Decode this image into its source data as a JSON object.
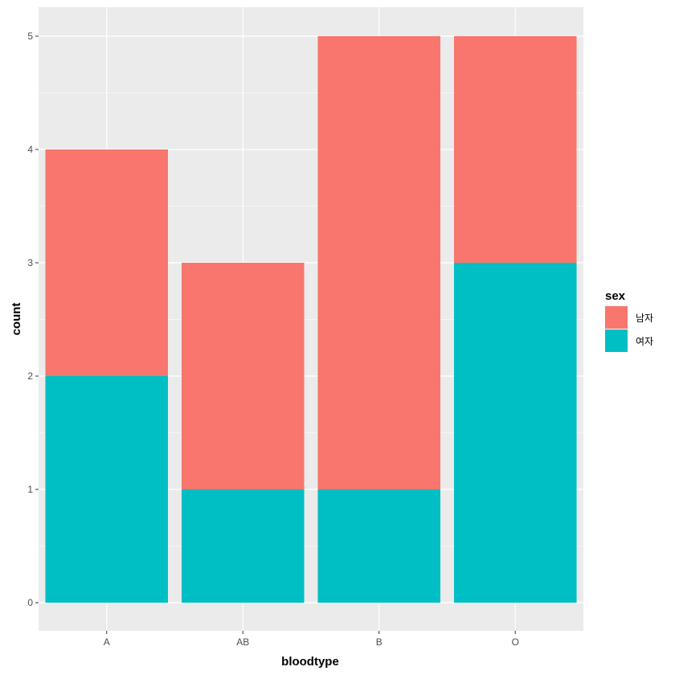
{
  "chart_data": {
    "type": "bar",
    "stacked": true,
    "categories": [
      "A",
      "AB",
      "B",
      "O"
    ],
    "series": [
      {
        "name": "남자",
        "values": [
          2,
          2,
          4,
          2
        ],
        "color": "#F8766D"
      },
      {
        "name": "여자",
        "values": [
          2,
          1,
          1,
          3
        ],
        "color": "#00BFC4"
      }
    ],
    "xlabel": "bloodtype",
    "ylabel": "count",
    "ylim": [
      0,
      5
    ],
    "yticks": [
      "0",
      "1",
      "2",
      "3",
      "4",
      "5"
    ],
    "grid": true,
    "legend": {
      "title": "sex",
      "placement": "right"
    },
    "panel_background": "#EBEBEB",
    "grid_color": "#FFFFFF"
  }
}
